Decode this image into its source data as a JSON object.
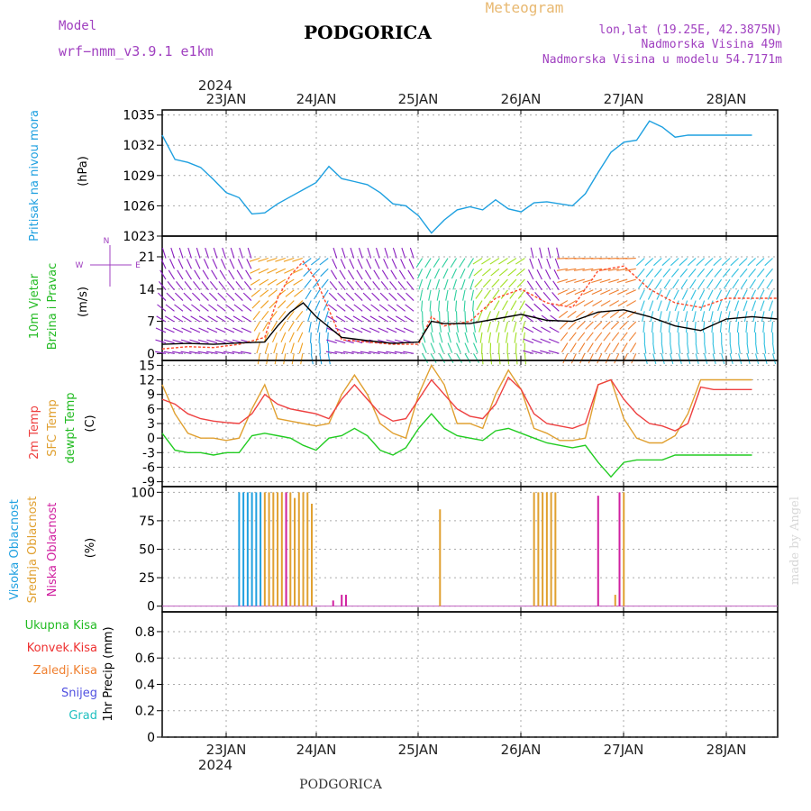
{
  "header": {
    "meteogram": "Meteogram",
    "model_label": "Model",
    "model_name": "wrf−nmm_v3.9.1  e1km",
    "station": "PODGORICA",
    "lonlat": "lon,lat (19.25E, 42.3875N)",
    "altitude": "Nadmorska Visina 49m",
    "model_altitude": "Nadmorska Visina u modelu 54.7171m"
  },
  "footer": {
    "station": "PODGORICA",
    "credit": "made by Angel"
  },
  "colors": {
    "pressure": "#1ea0e0",
    "wind_speed": "#000000",
    "gust": "#ff4a2a",
    "t2m": "#ee4040",
    "tsfc": "#e0a030",
    "dewpt": "#22cc22",
    "high_cloud": "#20a0e0",
    "mid_cloud": "#e0a030",
    "low_cloud": "#d020a0",
    "total_precip": "#22bb22",
    "conv_precip": "#ee3030",
    "frz_precip": "#f08030",
    "snow": "#5050e0",
    "graupel": "#20c0c0",
    "axis_label": "#a040c0"
  },
  "chart_data": [
    {
      "type": "line",
      "panel": "pressure",
      "ylabel": [
        "Pritisak na nivou mora",
        "(hPa)"
      ],
      "ylim": [
        1023,
        1035.5
      ],
      "yticks": [
        1023,
        1026,
        1029,
        1032,
        1035
      ],
      "x_days": [
        "23JAN",
        "24JAN",
        "25JAN",
        "26JAN",
        "27JAN",
        "28JAN"
      ],
      "x_year": "2024",
      "x": [
        0,
        3,
        6,
        9,
        12,
        15,
        18,
        21,
        24,
        27,
        30,
        33,
        36,
        39,
        42,
        45,
        48,
        51,
        54,
        57,
        60,
        63,
        66,
        69,
        72,
        75,
        78,
        81,
        84,
        87,
        90,
        93,
        96,
        99,
        102,
        105,
        108,
        111,
        114,
        117,
        120,
        123,
        126,
        129,
        132,
        135,
        138,
        141,
        144
      ],
      "values": [
        1033,
        1030.6,
        1030.3,
        1029.8,
        1028.6,
        1027.3,
        1026.8,
        1025.2,
        1025.3,
        1026.2,
        1026.9,
        1027.6,
        1028.3,
        1029.9,
        1028.7,
        1028.4,
        1028.1,
        1027.3,
        1026.2,
        1026.0,
        1025.0,
        1023.3,
        1024.6,
        1025.6,
        1025.9,
        1025.6,
        1026.6,
        1025.7,
        1025.4,
        1026.3,
        1026.4,
        1026.2,
        1026.0,
        1027.2,
        1029.3,
        1031.3,
        1032.3,
        1032.5,
        1034.4,
        1033.8,
        1032.8,
        1033,
        1033,
        1033,
        1033,
        1033,
        1033,
        1033,
        1033
      ]
    },
    {
      "type": "line",
      "panel": "wind",
      "ylabel": [
        "10m Vjetar",
        "Brzina i Pravac",
        "(m/s)"
      ],
      "compass": [
        "N",
        "W",
        "E"
      ],
      "ylim": [
        -1.5,
        25.5
      ],
      "yticks": [
        0,
        7,
        14,
        21
      ],
      "x": [
        0,
        6,
        12,
        18,
        24,
        27,
        30,
        33,
        36,
        42,
        48,
        54,
        60,
        63,
        66,
        72,
        78,
        84,
        90,
        96,
        102,
        108,
        114,
        120,
        126,
        132,
        138,
        144
      ],
      "values": [
        2,
        2.2,
        2,
        2.3,
        2.5,
        6,
        9,
        11,
        8,
        3.5,
        2.8,
        2.2,
        2.5,
        7,
        6.5,
        6.5,
        7.5,
        8.5,
        7.2,
        7,
        9,
        9.5,
        8,
        6,
        5,
        7.5,
        8,
        7.5
      ],
      "gust": [
        1,
        1.5,
        1.3,
        2,
        3.5,
        12,
        17,
        20,
        16,
        3,
        2.5,
        2,
        2,
        8,
        6,
        7,
        12,
        14,
        11,
        10,
        18,
        19,
        14,
        11,
        10,
        12,
        12,
        12
      ]
    },
    {
      "type": "line",
      "panel": "temperature",
      "ylabel": [
        "2m Temp",
        "SFC Temp",
        "dewpt Temp",
        "(C)"
      ],
      "ylim": [
        -10,
        16
      ],
      "yticks": [
        -9,
        -6,
        -3,
        0,
        3,
        6,
        9,
        12,
        15
      ],
      "x": [
        0,
        3,
        6,
        9,
        12,
        15,
        18,
        21,
        24,
        27,
        30,
        33,
        36,
        39,
        42,
        45,
        48,
        51,
        54,
        57,
        60,
        63,
        66,
        69,
        72,
        75,
        78,
        81,
        84,
        87,
        90,
        93,
        96,
        99,
        102,
        105,
        108,
        111,
        114,
        117,
        120,
        123,
        126,
        129,
        132,
        135,
        138,
        141,
        144
      ],
      "t2m": [
        8,
        7,
        5,
        4,
        3.5,
        3.2,
        3,
        5,
        9,
        7,
        6,
        5.5,
        5,
        4,
        8,
        11,
        8,
        5,
        3.5,
        4,
        8,
        12,
        9,
        6,
        4.5,
        4,
        7,
        12.5,
        10,
        5,
        3,
        2.5,
        2,
        3,
        11,
        12,
        8,
        5,
        3,
        2.5,
        1.5,
        3,
        10.5,
        10,
        10,
        10,
        10,
        10,
        10
      ],
      "tsfc": [
        11,
        5,
        1,
        0,
        0,
        -0.5,
        0,
        6,
        11,
        4,
        3.5,
        3,
        2.5,
        3,
        9,
        13,
        9,
        3,
        1,
        0,
        9,
        15,
        11,
        3,
        3,
        2,
        9,
        14,
        10,
        2,
        1,
        -0.5,
        -0.5,
        0,
        11,
        12,
        4,
        0,
        -1,
        -1,
        0.5,
        5,
        12,
        12,
        12,
        12,
        12,
        12,
        12
      ],
      "dewpt": [
        1,
        -2.5,
        -3,
        -3,
        -3.5,
        -3,
        -3,
        0.5,
        1,
        0.5,
        0,
        -1.5,
        -2.5,
        0,
        0.5,
        2,
        0.5,
        -2.5,
        -3.5,
        -2,
        2,
        5,
        2,
        0.5,
        0,
        -0.5,
        1.5,
        2,
        1,
        0,
        -1,
        -1.5,
        -2,
        -1.5,
        -5,
        -8,
        -5,
        -4.5,
        -4.5,
        -4.5,
        -3.5,
        -3.5,
        -3.5,
        -3.5,
        -3.5,
        -3.5,
        -3.5,
        -3.5,
        -3.5
      ]
    },
    {
      "type": "bar",
      "panel": "cloud",
      "ylabel": [
        "Visoka Oblacnost",
        "Srednja Oblacnost",
        "Niska Oblacnost",
        "(%)"
      ],
      "ylim": [
        -5,
        105
      ],
      "yticks": [
        0,
        25,
        50,
        75,
        100
      ],
      "series": [
        {
          "name": "Visoka Oblacnost",
          "x": [
            18,
            19,
            20,
            21,
            22,
            23
          ],
          "values": [
            100,
            100,
            100,
            100,
            100,
            100
          ]
        },
        {
          "name": "Srednja Oblacnost",
          "x": [
            24,
            25,
            26,
            27,
            28,
            29,
            30,
            31,
            32,
            33,
            34,
            35,
            65,
            87,
            88,
            89,
            90,
            91,
            92,
            106,
            108
          ],
          "values": [
            100,
            100,
            100,
            100,
            100,
            100,
            100,
            95,
            100,
            100,
            100,
            90,
            85,
            100,
            100,
            100,
            100,
            100,
            100,
            10,
            100
          ]
        },
        {
          "name": "Niska Oblacnost",
          "x": [
            29,
            40,
            42,
            43,
            102,
            107
          ],
          "values": [
            100,
            5,
            10,
            10,
            97,
            100
          ]
        }
      ]
    },
    {
      "type": "bar",
      "panel": "precip",
      "ylabel": [
        "1hr Precip (mm)"
      ],
      "series_labels": [
        "Ukupna Kisa",
        "Konvek.Kisa",
        "Zaledj.Kisa",
        "Snijeg",
        "Grad"
      ],
      "ylim": [
        0,
        0.95
      ],
      "yticks": [
        0,
        0.2,
        0.4,
        0.6,
        0.8
      ],
      "values": []
    }
  ]
}
